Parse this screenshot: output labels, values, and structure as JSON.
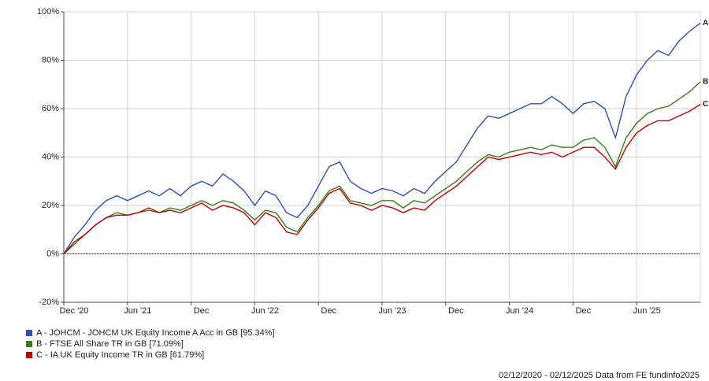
{
  "chart_data": {
    "type": "line",
    "x": [
      "2020-12",
      "2021-01",
      "2021-02",
      "2021-03",
      "2021-04",
      "2021-05",
      "2021-06",
      "2021-07",
      "2021-08",
      "2021-09",
      "2021-10",
      "2021-11",
      "2021-12",
      "2022-01",
      "2022-02",
      "2022-03",
      "2022-04",
      "2022-05",
      "2022-06",
      "2022-07",
      "2022-08",
      "2022-09",
      "2022-10",
      "2022-11",
      "2022-12",
      "2023-01",
      "2023-02",
      "2023-03",
      "2023-04",
      "2023-05",
      "2023-06",
      "2023-07",
      "2023-08",
      "2023-09",
      "2023-10",
      "2023-11",
      "2023-12",
      "2024-01",
      "2024-02",
      "2024-03",
      "2024-04",
      "2024-05",
      "2024-06",
      "2024-07",
      "2024-08",
      "2024-09",
      "2024-10",
      "2024-11",
      "2024-12",
      "2025-01",
      "2025-02",
      "2025-03",
      "2025-04",
      "2025-05",
      "2025-06",
      "2025-07",
      "2025-08",
      "2025-09",
      "2025-10",
      "2025-11",
      "2025-12"
    ],
    "series": [
      {
        "name": "A - JOHCM - JOHCM UK Equity Income A Acc in GB [95.34%]",
        "label": "A",
        "color": "#2f4fa8",
        "values": [
          0,
          7,
          12,
          18,
          22,
          24,
          22,
          24,
          26,
          24,
          27,
          24,
          28,
          30,
          28,
          33,
          30,
          26,
          20,
          26,
          24,
          17,
          15,
          20,
          28,
          36,
          38,
          30,
          27,
          25,
          27,
          26,
          24,
          27,
          25,
          30,
          34,
          38,
          45,
          52,
          57,
          56,
          58,
          60,
          62,
          62,
          65,
          62,
          58,
          62,
          63,
          60,
          48,
          65,
          74,
          80,
          84,
          82,
          88,
          92,
          95.34
        ]
      },
      {
        "name": "B - FTSE All Share TR in GB [71.09%]",
        "label": "B",
        "color": "#3a7a1a",
        "values": [
          0,
          4,
          8,
          12,
          15,
          17,
          16,
          17,
          18,
          17,
          19,
          18,
          20,
          22,
          20,
          22,
          21,
          18,
          14,
          18,
          17,
          11,
          9,
          15,
          20,
          26,
          28,
          22,
          21,
          20,
          22,
          22,
          19,
          22,
          21,
          24,
          27,
          30,
          34,
          38,
          41,
          40,
          42,
          43,
          44,
          43,
          45,
          44,
          44,
          47,
          48,
          44,
          36,
          48,
          54,
          58,
          60,
          61,
          64,
          67,
          71.09
        ]
      },
      {
        "name": "C - IA UK Equity Income TR in GB [61.79%]",
        "label": "C",
        "color": "#c00000",
        "values": [
          0,
          5,
          8,
          12,
          15,
          16,
          16,
          17,
          19,
          17,
          18,
          17,
          19,
          21,
          18,
          20,
          19,
          17,
          12,
          17,
          15,
          9,
          8,
          14,
          19,
          25,
          27,
          21,
          20,
          18,
          20,
          19,
          17,
          19,
          18,
          22,
          25,
          28,
          32,
          36,
          40,
          39,
          40,
          41,
          42,
          41,
          42,
          40,
          42,
          44,
          44,
          40,
          35,
          44,
          50,
          53,
          55,
          55,
          57,
          59,
          61.79
        ]
      }
    ],
    "ylim": [
      -20,
      100
    ],
    "yticks": [
      {
        "value": -20,
        "label": "-20%"
      },
      {
        "value": 0,
        "label": "0%"
      },
      {
        "value": 20,
        "label": "20%"
      },
      {
        "value": 40,
        "label": "40%"
      },
      {
        "value": 60,
        "label": "60%"
      },
      {
        "value": 80,
        "label": "80%"
      },
      {
        "value": 100,
        "label": "100%"
      }
    ],
    "xticks": [
      {
        "value": "2020-12",
        "label": "Dec '20"
      },
      {
        "value": "2021-06",
        "label": "Jun '21"
      },
      {
        "value": "2021-12",
        "label": "Dec"
      },
      {
        "value": "2022-06",
        "label": "Jun '22"
      },
      {
        "value": "2022-12",
        "label": "Dec"
      },
      {
        "value": "2023-06",
        "label": "Jun '23"
      },
      {
        "value": "2023-12",
        "label": "Dec"
      },
      {
        "value": "2024-06",
        "label": "Jun '24"
      },
      {
        "value": "2024-12",
        "label": "Dec"
      },
      {
        "value": "2025-06",
        "label": "Jun '25"
      }
    ],
    "grid": true,
    "footer": "02/12/2020 - 02/12/2025 Data from FE fundinfo2025"
  }
}
